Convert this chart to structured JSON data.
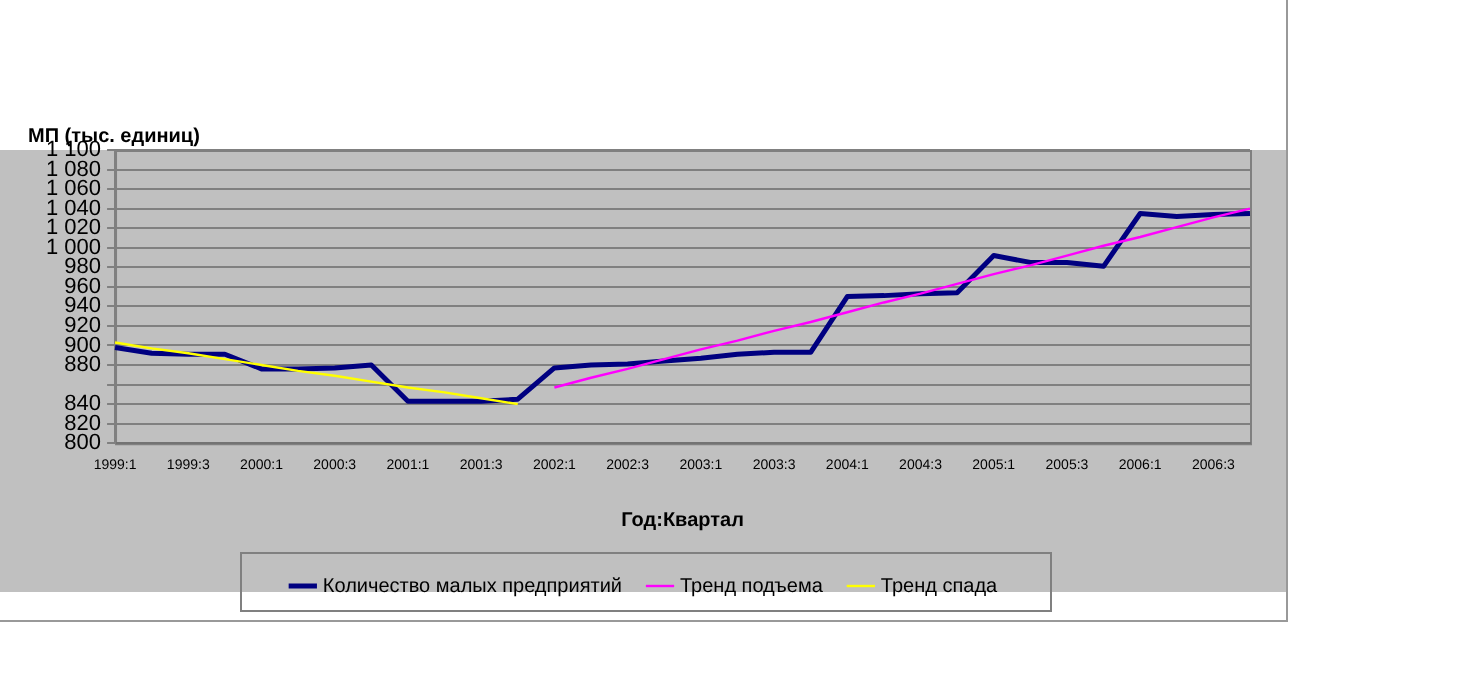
{
  "chart_data": {
    "type": "line",
    "ylabel": "МП (тыс. единиц)",
    "xlabel": "Год:Квартал",
    "categories": [
      "1999:1",
      null,
      "1999:3",
      null,
      "2000:1",
      null,
      "2000:3",
      null,
      "2001:1",
      null,
      "2001:3",
      null,
      "2002:1",
      null,
      "2002:3",
      null,
      "2003:1",
      null,
      "2003:3",
      null,
      "2004:1",
      null,
      "2004:3",
      null,
      "2005:1",
      null,
      "2005:3",
      null,
      "2006:1",
      null,
      "2006:3",
      null
    ],
    "series": [
      {
        "name": "Количество малых предприятий",
        "color": "#000080",
        "values": [
          898,
          892,
          891,
          891,
          876,
          876,
          877,
          880,
          843,
          843,
          843,
          845,
          877,
          880,
          881,
          884,
          887,
          891,
          893,
          893,
          950,
          951,
          953,
          954,
          992,
          985,
          985,
          981,
          1035,
          1032,
          1034,
          1035
        ]
      },
      {
        "name": "Тренд подъема",
        "color": "#ff00ff",
        "values": [
          null,
          null,
          null,
          null,
          null,
          null,
          null,
          null,
          null,
          null,
          null,
          null,
          857,
          867,
          876,
          886,
          896,
          905,
          915,
          924,
          934,
          944,
          953,
          963,
          973,
          982,
          992,
          1002,
          1011,
          1021,
          1031,
          1040
        ]
      },
      {
        "name": "Тренд спада",
        "color": "#ffff00",
        "values": [
          903,
          897,
          892,
          886,
          880,
          874,
          869,
          863,
          857,
          852,
          846,
          840,
          null,
          null,
          null,
          null,
          null,
          null,
          null,
          null,
          null,
          null,
          null,
          null,
          null,
          null,
          null,
          null,
          null,
          null,
          null,
          null
        ]
      }
    ],
    "ylim": [
      800,
      1100
    ],
    "yticks": [
      800,
      820,
      840,
      {
        "value": 860,
        "label": null
      },
      880,
      900,
      920,
      940,
      960,
      980,
      {
        "value": 1000,
        "label": "1 000"
      },
      {
        "value": 1020,
        "label": "1 020"
      },
      {
        "value": 1040,
        "label": "1 040"
      },
      {
        "value": 1060,
        "label": "1 060"
      },
      {
        "value": 1080,
        "label": "1 080"
      },
      {
        "value": 1100,
        "label": "1 100"
      }
    ],
    "grid": "y",
    "legend": "bottom",
    "marker": "none",
    "line_style": "solid"
  }
}
